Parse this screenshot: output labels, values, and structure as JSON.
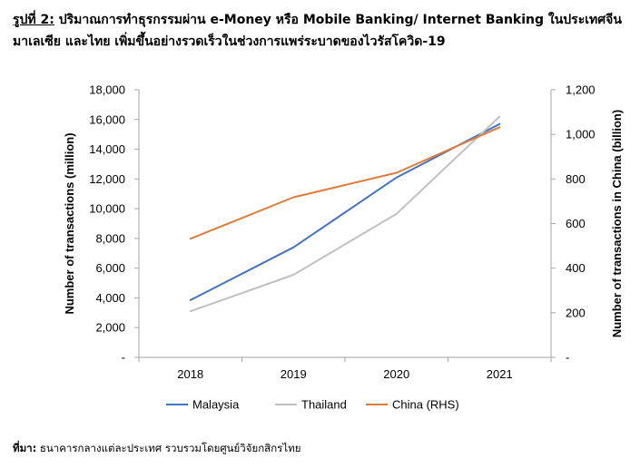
{
  "figure": {
    "label": "รูปที่ 2:",
    "title": "ปริมาณการทำธุรกรรมผ่าน e-Money หรือ Mobile Banking/ Internet Banking ในประเทศจีน มาเลเซีย และไทย เพิ่มขึ้นอย่างรวดเร็วในช่วงการแพร่ระบาดของไวรัสโควิด-19"
  },
  "source": {
    "label": "ที่มา:",
    "text": "ธนาคารกลางแต่ละประเทศ รวบรวมโดยศูนย์วิจัยกสิกรไทย"
  },
  "chart_data": {
    "type": "line",
    "categories": [
      "2018",
      "2019",
      "2020",
      "2021"
    ],
    "ylabel": "Number of transactions (million)",
    "y2label": "Number of transactions in China (billion)",
    "ylim": [
      0,
      18000
    ],
    "y2lim": [
      0,
      1200
    ],
    "yticks": [
      0,
      2000,
      4000,
      6000,
      8000,
      10000,
      12000,
      14000,
      16000,
      18000
    ],
    "yticklabels": [
      "-",
      "2,000",
      "4,000",
      "6,000",
      "8,000",
      "10,000",
      "12,000",
      "14,000",
      "16,000",
      "18,000"
    ],
    "y2ticks": [
      0,
      200,
      400,
      600,
      800,
      1000,
      1200
    ],
    "y2ticklabels": [
      "-",
      "200",
      "400",
      "600",
      "800",
      "1,000",
      "1,200"
    ],
    "grid": false,
    "legend_position": "bottom",
    "series": [
      {
        "name": "Malaysia",
        "axis": "left",
        "color": "#4472C4",
        "values": [
          3850,
          7400,
          12100,
          15700
        ]
      },
      {
        "name": "Thailand",
        "axis": "left",
        "color": "#C0C0C0",
        "values": [
          3100,
          5550,
          9650,
          16200
        ]
      },
      {
        "name": "China (RHS)",
        "axis": "right",
        "color": "#E07B39",
        "values": [
          532,
          718,
          828,
          1032
        ]
      }
    ]
  }
}
